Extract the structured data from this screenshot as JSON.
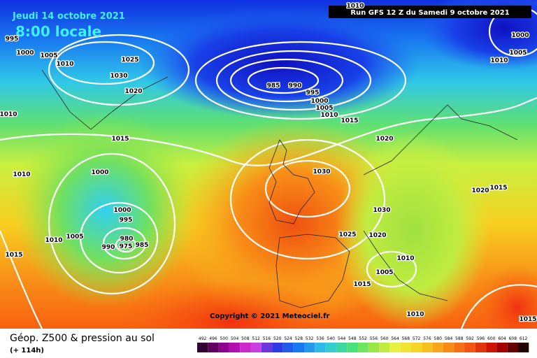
{
  "header": {
    "date": "Jeudi 14 octobre 2021",
    "time": "8:00 locale",
    "run": "Run GFS 12 Z du Samedi 9 octobre 2021"
  },
  "copyright": "Copyright © 2021 Meteociel.fr",
  "legend": {
    "title": "Géop. Z500 & pression au sol",
    "lead": "(+ 114h)",
    "ticks": [
      492,
      496,
      500,
      504,
      508,
      512,
      516,
      520,
      524,
      528,
      532,
      536,
      540,
      544,
      548,
      552,
      556,
      560,
      564,
      568,
      572,
      576,
      580,
      584,
      588,
      592,
      596,
      600,
      604,
      608,
      612
    ]
  },
  "isobar_labels": [
    1010,
    995,
    1000,
    1005,
    1010,
    1025,
    1030,
    1020,
    1010,
    985,
    990,
    995,
    1000,
    1005,
    1010,
    1015,
    1015,
    1020,
    1010,
    1000,
    1030,
    1020,
    1015,
    1000,
    1005,
    1010,
    1000,
    995,
    1030,
    1025,
    1020,
    1010,
    1005,
    980,
    990,
    975,
    985,
    1015,
    1010,
    1005,
    1015,
    1010,
    1015
  ]
}
